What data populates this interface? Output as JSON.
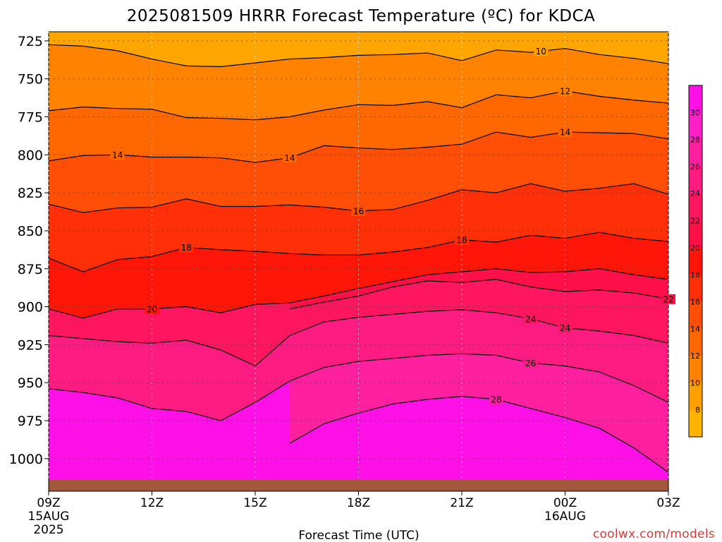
{
  "chart_data": {
    "type": "filled-contour",
    "title": "2025081509 HRRR Forecast Temperature (ºC) for KDCA",
    "xlabel": "Forecast Time (UTC)",
    "ylabel": "",
    "x_ticks": [
      {
        "hour": 0,
        "label": "09Z",
        "sub1": "15AUG",
        "sub2": "2025"
      },
      {
        "hour": 3,
        "label": "12Z",
        "sub1": "",
        "sub2": ""
      },
      {
        "hour": 6,
        "label": "15Z",
        "sub1": "",
        "sub2": ""
      },
      {
        "hour": 9,
        "label": "18Z",
        "sub1": "",
        "sub2": ""
      },
      {
        "hour": 12,
        "label": "21Z",
        "sub1": "",
        "sub2": ""
      },
      {
        "hour": 15,
        "label": "00Z",
        "sub1": "16AUG",
        "sub2": ""
      },
      {
        "hour": 18,
        "label": "03Z",
        "sub1": "",
        "sub2": ""
      }
    ],
    "xlim": [
      0,
      18
    ],
    "y_ticks": [
      "725",
      "750",
      "775",
      "800",
      "825",
      "850",
      "875",
      "900",
      "925",
      "950",
      "975",
      "1000"
    ],
    "ylim": [
      1014,
      719
    ],
    "grid": true,
    "colorbar_ticks": [
      "8",
      "10",
      "12",
      "14",
      "16",
      "18",
      "20",
      "22",
      "24",
      "26",
      "28",
      "30"
    ],
    "levels": [
      {
        "v": 6,
        "color": "#ffc400"
      },
      {
        "v": 8,
        "color": "#ffb300"
      },
      {
        "v": 10,
        "color": "#ffa000"
      },
      {
        "v": 12,
        "color": "#ff8200"
      },
      {
        "v": 14,
        "color": "#ff6800"
      },
      {
        "v": 16,
        "color": "#ff4f06"
      },
      {
        "v": 18,
        "color": "#ff3008"
      },
      {
        "v": 20,
        "color": "#ff1608"
      },
      {
        "v": 22,
        "color": "#ff1048"
      },
      {
        "v": 24,
        "color": "#ff1660"
      },
      {
        "v": 26,
        "color": "#ff1c82"
      },
      {
        "v": 28,
        "color": "#ff20a0"
      },
      {
        "v": 30,
        "color": "#ff20c8"
      },
      {
        "v": 32,
        "color": "#ff10e6"
      }
    ],
    "ground_color": "#a0573a",
    "top_fill_color": "#ffa500",
    "contours": [
      {
        "temp": 10,
        "label": "10",
        "label_hour": 14.3,
        "p": [
          727.5,
          728.5,
          731.5,
          737,
          741.5,
          742,
          739.5,
          737,
          736,
          734.5,
          734,
          733,
          738,
          731,
          732.5,
          730,
          734,
          736.5,
          740
        ]
      },
      {
        "temp": 12,
        "label": "12",
        "label_hour": 15,
        "p": [
          771,
          768.5,
          769.5,
          770,
          775.5,
          776,
          777,
          775,
          770.5,
          767,
          767.5,
          765,
          769,
          760.5,
          762.5,
          758,
          761.5,
          764,
          766
        ]
      },
      {
        "temp": 14,
        "label": "14",
        "label_hour": 15,
        "p": [
          804,
          800.5,
          800,
          801.5,
          801.5,
          802,
          805,
          802,
          794,
          795.5,
          796.5,
          795,
          793,
          785,
          788.5,
          785,
          785.5,
          786,
          789.5
        ]
      },
      {
        "temp": 14,
        "label": "14",
        "label_hour": 2,
        "p": [
          null,
          null,
          null,
          null,
          null,
          null,
          null,
          null,
          null,
          null,
          null,
          null,
          null,
          null,
          null,
          null,
          null,
          null,
          null
        ]
      },
      {
        "temp": 14,
        "label": "14",
        "label_hour": 7,
        "p": [
          null,
          null,
          null,
          null,
          null,
          null,
          null,
          null,
          null,
          null,
          null,
          null,
          null,
          null,
          null,
          null,
          null,
          null,
          null
        ]
      },
      {
        "temp": 16,
        "label": "16",
        "label_hour": 9,
        "p": [
          832.5,
          838,
          835,
          834.5,
          829,
          834,
          834,
          833,
          834.5,
          837,
          836,
          830,
          823,
          825,
          819,
          824,
          822,
          819,
          826
        ]
      },
      {
        "temp": 18,
        "label": "18",
        "label_hour": 12,
        "p": [
          868,
          877,
          869,
          867,
          861,
          862.5,
          863.5,
          865,
          866,
          866,
          864,
          861,
          856,
          857.5,
          853,
          855,
          851,
          855,
          857
        ]
      },
      {
        "temp": 18,
        "label": "18",
        "label_hour": 4,
        "p": [
          null,
          null,
          null,
          null,
          null,
          null,
          null,
          null,
          null,
          null,
          null,
          null,
          null,
          null,
          null,
          null,
          null,
          null,
          null
        ]
      },
      {
        "temp": 20,
        "label": "20",
        "label_hour": 3,
        "p": [
          901.5,
          907.5,
          901.5,
          901.5,
          900,
          904,
          898.5,
          897.5,
          893,
          888,
          883.5,
          879,
          877,
          875,
          877.5,
          877,
          875,
          879,
          882
        ]
      },
      {
        "temp": 22,
        "label": "22",
        "label_hour": 18,
        "p": [
          null,
          null,
          null,
          null,
          null,
          null,
          null,
          901.5,
          897,
          893,
          887,
          883,
          884,
          882,
          887,
          890,
          889,
          891,
          895
        ]
      },
      {
        "temp": 24,
        "label": "24",
        "label_hour": 14,
        "p": [
          919,
          921,
          923,
          924,
          922,
          928.5,
          939,
          919,
          910,
          907,
          905,
          903,
          902,
          904,
          908,
          914,
          916,
          919,
          924
        ]
      },
      {
        "temp": 24,
        "label": "24",
        "label_hour": 15,
        "p": [
          null,
          null,
          null,
          null,
          null,
          null,
          null,
          null,
          null,
          null,
          null,
          null,
          null,
          null,
          null,
          null,
          null,
          null,
          null
        ]
      },
      {
        "temp": 26,
        "label": "26",
        "label_hour": 14,
        "p": [
          954,
          956.5,
          960,
          967,
          969,
          975,
          963,
          949,
          940,
          936,
          934,
          932,
          931,
          932,
          937,
          939,
          943,
          952,
          963
        ]
      },
      {
        "temp": 28,
        "label": "28",
        "label_hour": 13,
        "p": [
          null,
          null,
          null,
          null,
          null,
          null,
          null,
          990,
          977,
          970,
          964,
          961,
          959,
          961,
          967,
          973,
          980,
          993,
          1009
        ]
      }
    ]
  },
  "credit": "coolwx.com/models"
}
